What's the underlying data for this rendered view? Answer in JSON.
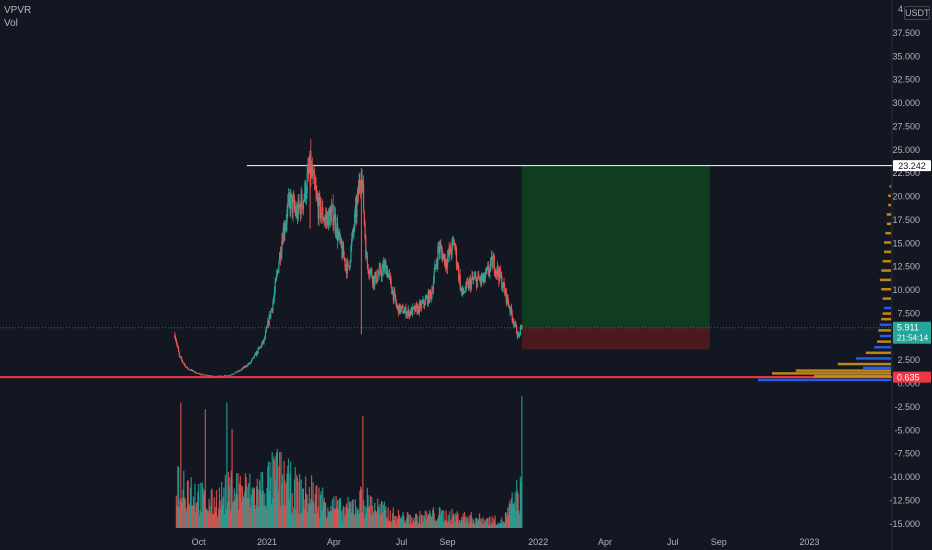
{
  "header": {
    "symbol": "VPVR",
    "volume_label": "Vol"
  },
  "currency": "USDT",
  "currency_prefix": "4",
  "price_axis": {
    "ticks": [
      "37.500",
      "35.000",
      "32.500",
      "30.000",
      "27.500",
      "25.000",
      "22.500",
      "20.000",
      "17.500",
      "15.000",
      "12.500",
      "10.000",
      "7.500",
      "5.000",
      "2.500",
      "0.000",
      "-2.500",
      "-5.000",
      "-7.500",
      "-10.000",
      "-12.500",
      "-15.000"
    ]
  },
  "time_axis": {
    "ticks": [
      "Oct",
      "2021",
      "Apr",
      "Jul",
      "Sep",
      "2022",
      "Apr",
      "Jul",
      "Sep",
      "2023"
    ]
  },
  "badges": {
    "resistance": "23.242",
    "last_price": "5.911",
    "countdown": "21:54:14",
    "support": "0.635"
  },
  "colors": {
    "background": "#131722",
    "up": "#26a69a",
    "down": "#ef5350",
    "target_zone": "#103c20",
    "stop_zone": "#4a1a20",
    "support_line": "#f23645",
    "resistance_line": "#ffffff",
    "vp_orange": "#d4921a",
    "vp_blue": "#2962ff"
  },
  "chart_data": {
    "type": "candlestick",
    "y_range": [
      -15,
      40
    ],
    "levels": {
      "resistance": 23.242,
      "last": 5.911,
      "support": 0.635
    },
    "position": {
      "entry": 5.911,
      "target": 23.242,
      "stop": 3.6
    },
    "price_path": [
      [
        "2020-08-30",
        5.2
      ],
      [
        "2020-09-05",
        2.8
      ],
      [
        "2020-09-15",
        1.6
      ],
      [
        "2020-09-30",
        1.0
      ],
      [
        "2020-10-20",
        0.7
      ],
      [
        "2020-11-10",
        0.8
      ],
      [
        "2020-11-25",
        1.3
      ],
      [
        "2020-12-10",
        2.2
      ],
      [
        "2020-12-28",
        4.5
      ],
      [
        "2021-01-10",
        9.0
      ],
      [
        "2021-01-22",
        16.0
      ],
      [
        "2021-02-01",
        19.5
      ],
      [
        "2021-02-10",
        18.0
      ],
      [
        "2021-02-20",
        20.0
      ],
      [
        "2021-02-28",
        23.2
      ],
      [
        "2021-03-10",
        19.0
      ],
      [
        "2021-03-20",
        17.5
      ],
      [
        "2021-04-01",
        18.0
      ],
      [
        "2021-04-10",
        14.5
      ],
      [
        "2021-04-20",
        12.0
      ],
      [
        "2021-05-02",
        19.0
      ],
      [
        "2021-05-08",
        23.0
      ],
      [
        "2021-05-15",
        13.0
      ],
      [
        "2021-05-25",
        11.0
      ],
      [
        "2021-06-10",
        12.5
      ],
      [
        "2021-06-25",
        8.0
      ],
      [
        "2021-07-10",
        7.5
      ],
      [
        "2021-07-25",
        8.0
      ],
      [
        "2021-08-10",
        9.5
      ],
      [
        "2021-08-20",
        14.5
      ],
      [
        "2021-08-30",
        13.0
      ],
      [
        "2021-09-10",
        15.0
      ],
      [
        "2021-09-20",
        9.5
      ],
      [
        "2021-10-05",
        11.0
      ],
      [
        "2021-10-20",
        11.0
      ],
      [
        "2021-11-01",
        13.0
      ],
      [
        "2021-11-10",
        11.5
      ],
      [
        "2021-11-20",
        9.0
      ],
      [
        "2021-12-05",
        5.0
      ],
      [
        "2021-12-10",
        5.911
      ]
    ],
    "volume_path": [
      [
        "2020-09-01",
        0.45
      ],
      [
        "2020-09-20",
        0.35
      ],
      [
        "2020-10-15",
        0.2
      ],
      [
        "2020-11-20",
        0.35
      ],
      [
        "2020-12-15",
        0.3
      ],
      [
        "2021-01-15",
        0.45
      ],
      [
        "2021-02-15",
        0.3
      ],
      [
        "2021-03-15",
        0.25
      ],
      [
        "2021-04-15",
        0.15
      ],
      [
        "2021-05-10",
        0.25
      ],
      [
        "2021-06-15",
        0.12
      ],
      [
        "2021-07-15",
        0.08
      ],
      [
        "2021-08-15",
        0.12
      ],
      [
        "2021-09-15",
        0.1
      ],
      [
        "2021-10-15",
        0.08
      ],
      [
        "2021-11-15",
        0.06
      ],
      [
        "2021-12-05",
        0.3
      ]
    ],
    "volume_spikes": [
      [
        "2020-09-07",
        0.95
      ],
      [
        "2020-10-10",
        0.9
      ],
      [
        "2020-11-08",
        0.95
      ],
      [
        "2020-11-15",
        0.75
      ],
      [
        "2021-01-15",
        0.6
      ],
      [
        "2021-03-02",
        0.4
      ],
      [
        "2021-05-10",
        0.85
      ],
      [
        "2021-12-10",
        1.0
      ]
    ],
    "volume_profile": [
      [
        0.3,
        0.95,
        "blue"
      ],
      [
        0.7,
        0.55,
        "orange"
      ],
      [
        1.0,
        0.85,
        "orange"
      ],
      [
        1.3,
        0.68,
        "orange"
      ],
      [
        1.6,
        0.2,
        "blue"
      ],
      [
        2.0,
        0.38,
        "orange"
      ],
      [
        2.6,
        0.25,
        "blue"
      ],
      [
        3.2,
        0.18,
        "orange"
      ],
      [
        3.8,
        0.12,
        "blue"
      ],
      [
        4.4,
        0.1,
        "orange"
      ],
      [
        5.0,
        0.08,
        "blue"
      ],
      [
        5.6,
        0.09,
        "orange"
      ],
      [
        6.2,
        0.08,
        "blue"
      ],
      [
        6.8,
        0.07,
        "orange"
      ],
      [
        7.4,
        0.06,
        "orange"
      ],
      [
        8.0,
        0.05,
        "blue"
      ],
      [
        9.0,
        0.06,
        "orange"
      ],
      [
        10.0,
        0.07,
        "orange"
      ],
      [
        11.0,
        0.08,
        "orange"
      ],
      [
        12.0,
        0.07,
        "orange"
      ],
      [
        13.0,
        0.06,
        "orange"
      ],
      [
        14.0,
        0.05,
        "orange"
      ],
      [
        15.0,
        0.05,
        "orange"
      ],
      [
        16.0,
        0.04,
        "orange"
      ],
      [
        17.0,
        0.03,
        "orange"
      ],
      [
        18.0,
        0.03,
        "orange"
      ],
      [
        19.0,
        0.02,
        "orange"
      ],
      [
        20.0,
        0.02,
        "orange"
      ],
      [
        21.0,
        0.01,
        "orange"
      ]
    ]
  }
}
